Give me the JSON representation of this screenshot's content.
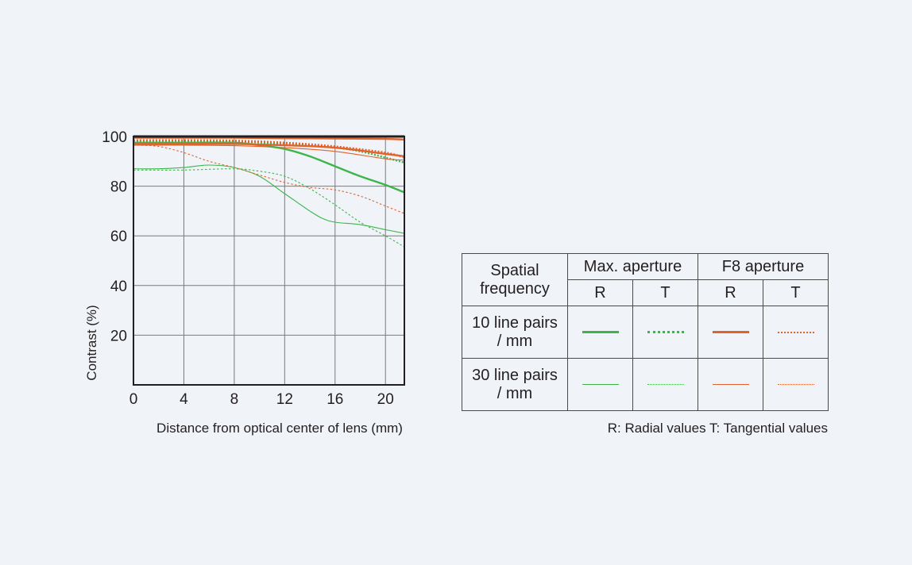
{
  "chart_data": {
    "type": "line",
    "title": "",
    "xlabel": "Distance from optical center of lens (mm)",
    "ylabel": "Contrast (%)",
    "xlim": [
      0,
      21.5
    ],
    "ylim": [
      0,
      100
    ],
    "x_ticks": [
      0,
      4,
      8,
      12,
      16,
      20
    ],
    "y_ticks": [
      20,
      40,
      60,
      80,
      100
    ],
    "grid": true,
    "legend_placement": "right",
    "series": [
      {
        "aperture": "Max. aperture",
        "direction": "R",
        "frequency": "10 line pairs / mm",
        "color": "#3db54a",
        "style": "solid",
        "weight": "thick",
        "x": [
          0,
          4,
          8,
          10,
          12,
          14,
          16,
          18,
          20,
          21.5
        ],
        "y": [
          97.5,
          97.5,
          97.5,
          96.5,
          95,
          92,
          88,
          84,
          80.5,
          77.5
        ]
      },
      {
        "aperture": "Max. aperture",
        "direction": "T",
        "frequency": "10 line pairs / mm",
        "color": "#3db54a",
        "style": "dotted",
        "weight": "thick",
        "x": [
          0,
          4,
          8,
          12,
          16,
          18,
          20,
          21.5
        ],
        "y": [
          98,
          98,
          98,
          97,
          95.5,
          94,
          91.5,
          89.5
        ]
      },
      {
        "aperture": "F8 aperture",
        "direction": "R",
        "frequency": "10 line pairs / mm",
        "color": "#e2622b",
        "style": "solid",
        "weight": "thick",
        "x": [
          0,
          4,
          8,
          12,
          16,
          20,
          21.5
        ],
        "y": [
          99.5,
          99.5,
          99.5,
          99.3,
          99.2,
          99,
          98.8
        ]
      },
      {
        "aperture": "F8 aperture",
        "direction": "R",
        "frequency": "10 line pairs / mm",
        "color": "#e2622b",
        "style": "solid",
        "weight": "thick",
        "x": [
          0,
          4,
          8,
          12,
          16,
          20,
          21.5
        ],
        "y": [
          97,
          97,
          97,
          96.5,
          95.5,
          93,
          92
        ]
      },
      {
        "aperture": "F8 aperture",
        "direction": "T",
        "frequency": "10 line pairs / mm",
        "color": "#e2622b",
        "style": "dotted",
        "weight": "thick",
        "x": [
          0,
          4,
          8,
          12,
          16,
          20,
          21.5
        ],
        "y": [
          98.5,
          98.5,
          98.3,
          97.5,
          96,
          93.5,
          91.5
        ]
      },
      {
        "aperture": "Max. aperture",
        "direction": "R",
        "frequency": "30 line pairs / mm",
        "color": "#3db54a",
        "style": "solid",
        "weight": "thin",
        "x": [
          0,
          2,
          4,
          6,
          8,
          10,
          12,
          14,
          15,
          16,
          18,
          20,
          21.5
        ],
        "y": [
          87,
          87,
          87.5,
          88.5,
          87.5,
          84,
          77,
          70,
          67,
          65.5,
          64.5,
          62.5,
          61
        ]
      },
      {
        "aperture": "Max. aperture",
        "direction": "T",
        "frequency": "30 line pairs / mm",
        "color": "#3db54a",
        "style": "dotted",
        "weight": "thin",
        "x": [
          0,
          4,
          8,
          10,
          12,
          14,
          16,
          18,
          20,
          21.5
        ],
        "y": [
          86.5,
          86.5,
          87,
          86,
          84,
          79,
          72.5,
          65.5,
          60,
          55.5
        ]
      },
      {
        "aperture": "F8 aperture",
        "direction": "R",
        "frequency": "30 line pairs / mm",
        "color": "#e2622b",
        "style": "solid",
        "weight": "thin",
        "x": [
          0,
          4,
          8,
          12,
          16,
          20,
          21.5
        ],
        "y": [
          96.5,
          96.5,
          96.3,
          95.5,
          94,
          91,
          90.5
        ]
      },
      {
        "aperture": "F8 aperture",
        "direction": "T",
        "frequency": "30 line pairs / mm",
        "color": "#e2622b",
        "style": "dotted",
        "weight": "thin",
        "x": [
          0,
          2,
          4,
          6,
          8,
          10,
          12,
          14,
          16,
          18,
          20,
          21.5
        ],
        "y": [
          96.5,
          96,
          93.5,
          90,
          87.5,
          84.5,
          81.5,
          79.5,
          78.5,
          76,
          72,
          69
        ]
      }
    ]
  },
  "legend": {
    "header_frequency": "Spatial frequency",
    "group_max": "Max. aperture",
    "group_f8": "F8 aperture",
    "sub_r": "R",
    "sub_t": "T",
    "row_10": "10 line pairs / mm",
    "row_30": "30 line pairs / mm",
    "footnote": "R: Radial values  T: Tangential values"
  },
  "colors": {
    "green": "#3db54a",
    "orange": "#e2622b",
    "grid": "#7a7a7a",
    "frame": "#231f20"
  }
}
